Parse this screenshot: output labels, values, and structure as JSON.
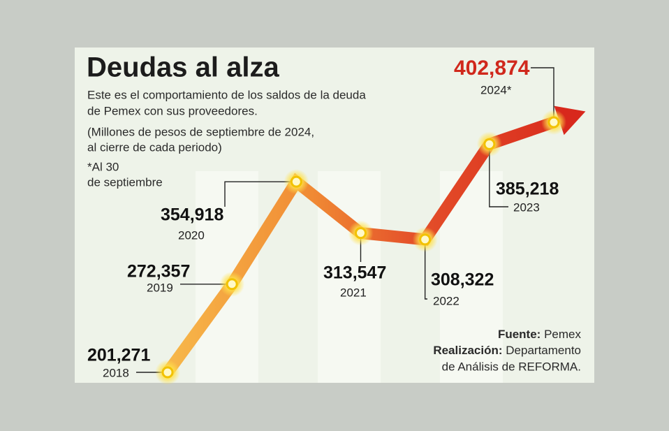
{
  "chart_data": {
    "type": "line",
    "title": "Deudas al alza",
    "subtitle": [
      "Este es el comportamiento de los saldos de la deuda",
      "de Pemex con sus proveedores."
    ],
    "units_note": [
      "(Millones de pesos de septiembre de 2024,",
      "al cierre de cada periodo)"
    ],
    "footnote": [
      "*Al 30",
      "de septiembre"
    ],
    "categories": [
      "2018",
      "2019",
      "2020",
      "2021",
      "2022",
      "2023",
      "2024*"
    ],
    "values": [
      201271,
      272357,
      354918,
      313547,
      308322,
      385218,
      402874
    ],
    "value_labels": [
      "201,271",
      "272,357",
      "354,918",
      "313,547",
      "308,322",
      "385,218",
      "402,874"
    ],
    "source": {
      "label": "Fuente:",
      "text": "Pemex"
    },
    "credit": {
      "label": "Realización:",
      "text": [
        "Departamento",
        "de Análisis de REFORMA."
      ]
    }
  }
}
